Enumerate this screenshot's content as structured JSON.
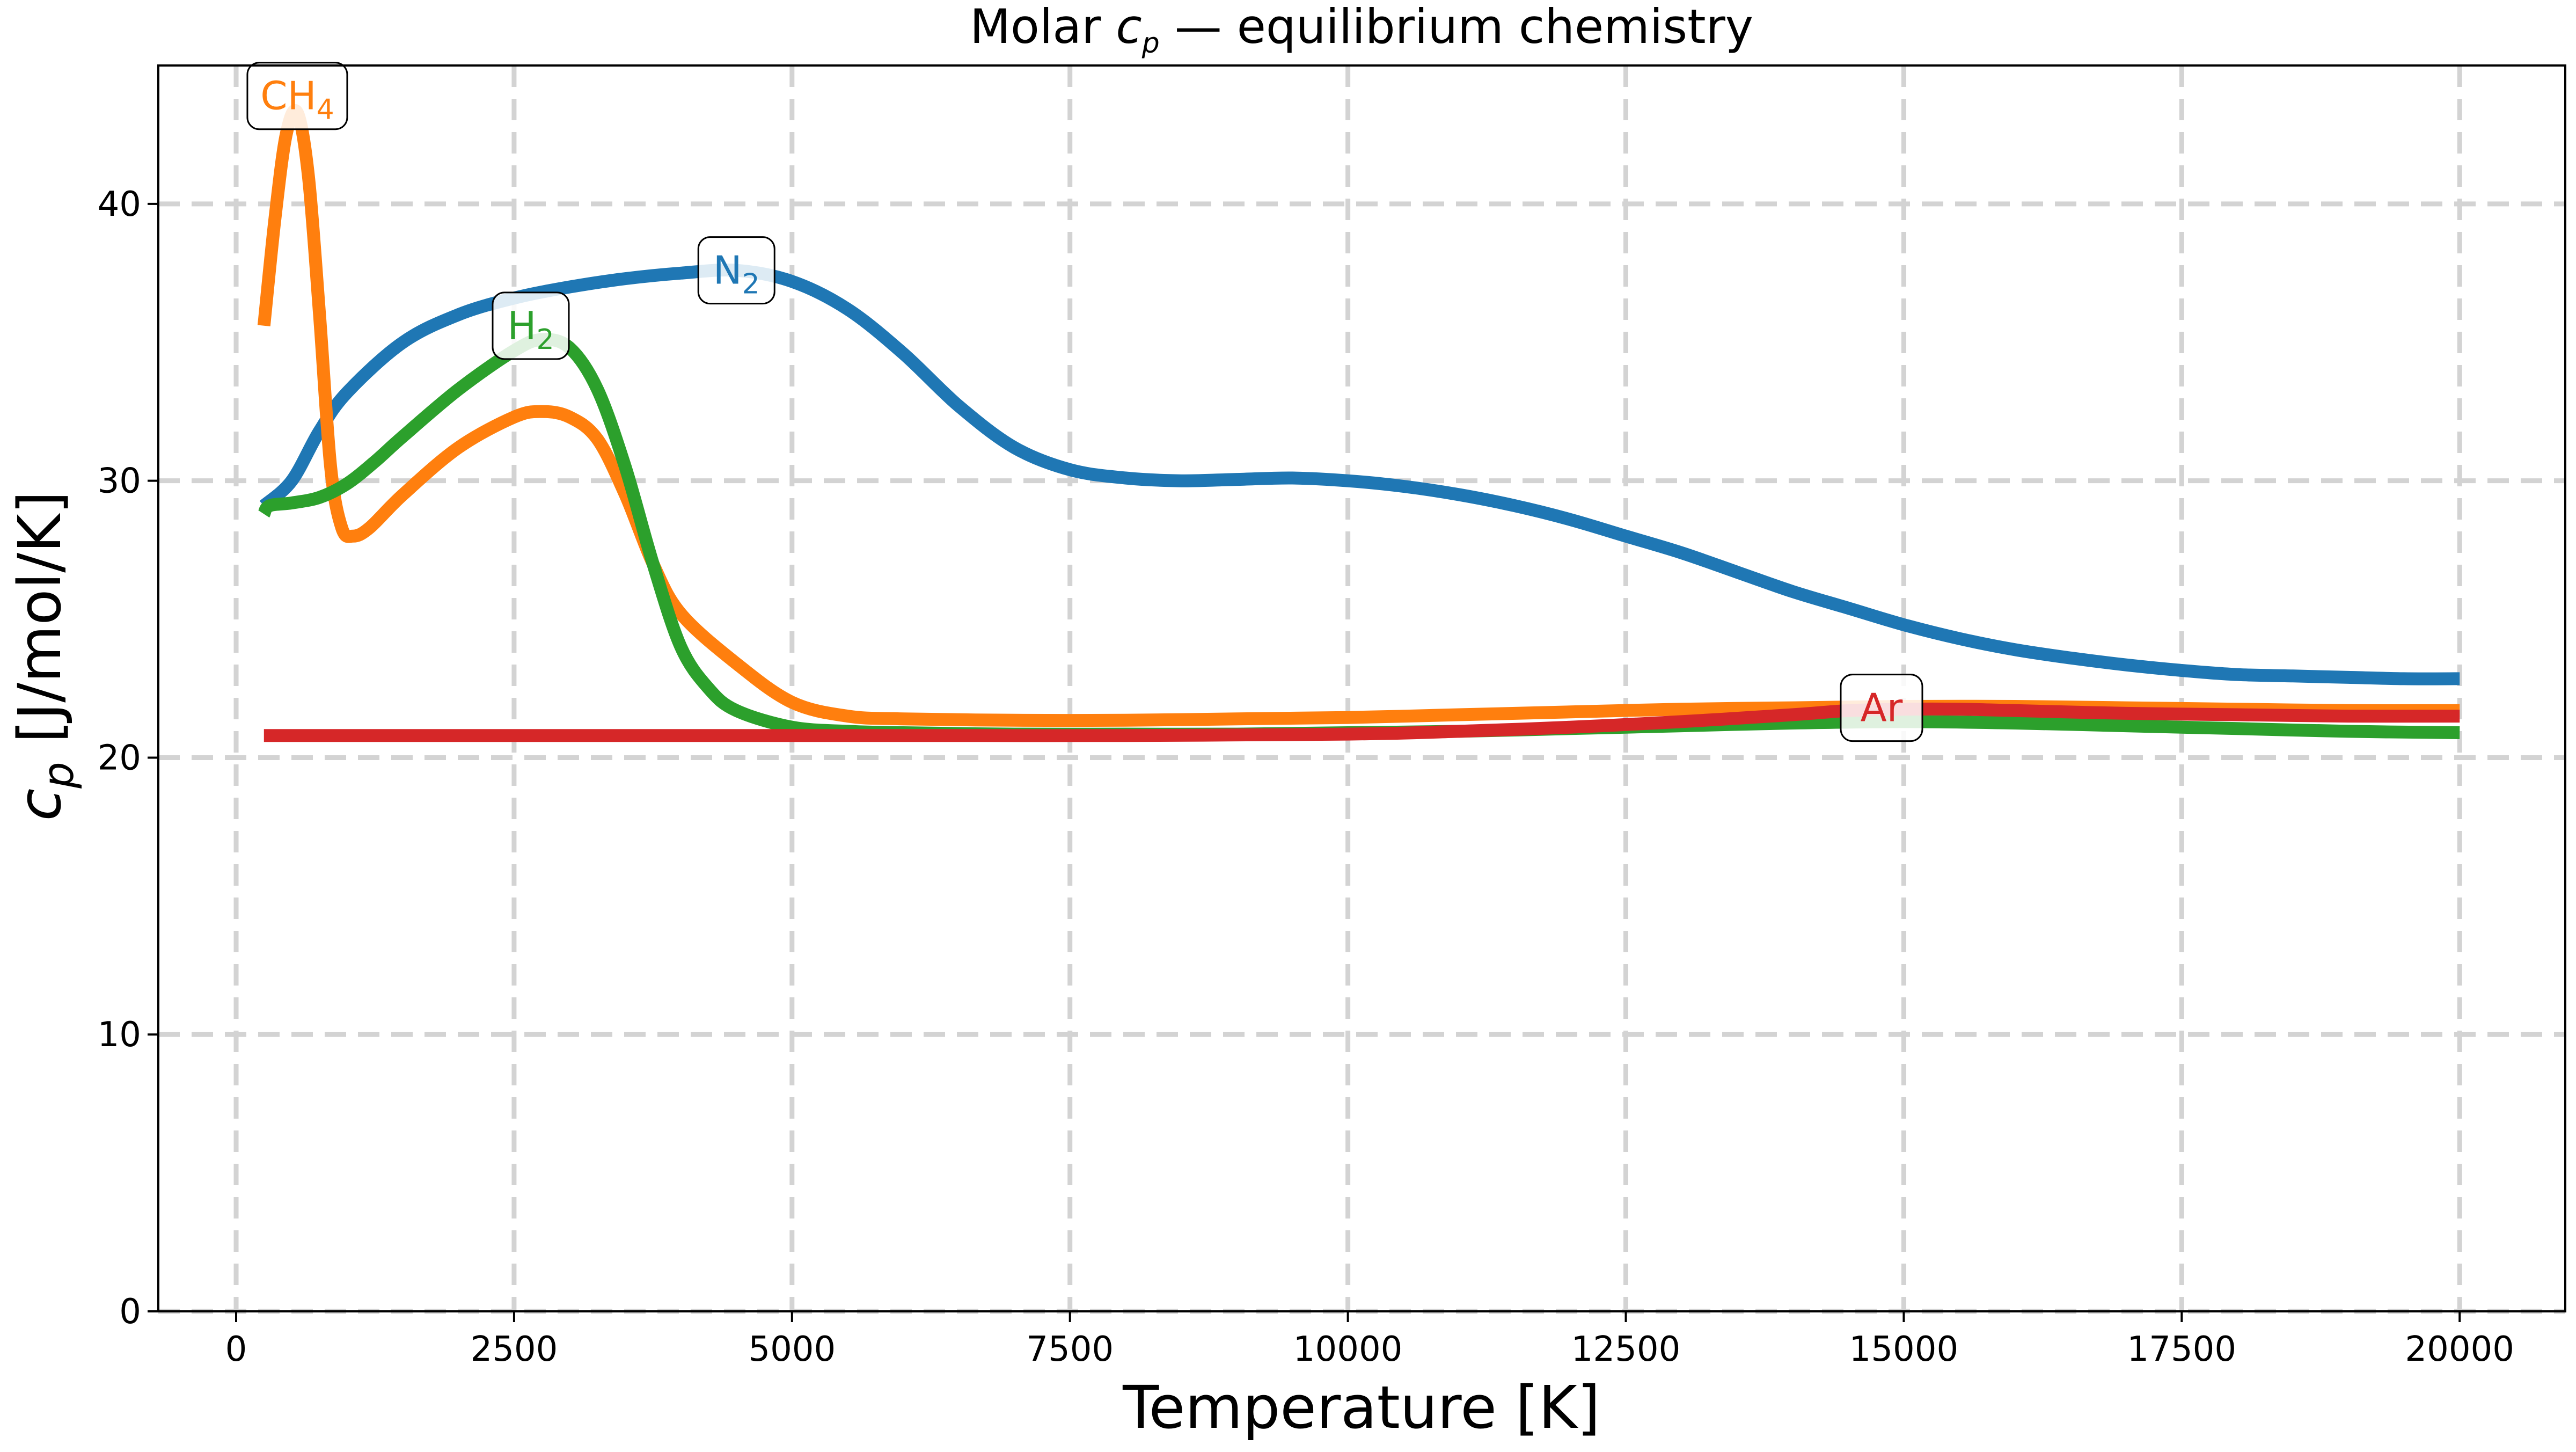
{
  "chart_data": {
    "type": "line",
    "title": {
      "prefix": "Molar ",
      "var": "c",
      "var_sub": "p",
      "suffix": " — equilibrium chemistry"
    },
    "xlabel": "Temperature [K]",
    "ylabel": {
      "var": "c",
      "var_sub": "p",
      "suffix": " [J/mol/K]"
    },
    "xlim": [
      -700,
      20950
    ],
    "ylim": [
      0,
      45
    ],
    "xticks": [
      0,
      2500,
      5000,
      7500,
      10000,
      12500,
      15000,
      17500,
      20000
    ],
    "yticks": [
      0,
      10,
      20,
      30,
      40
    ],
    "grid": true,
    "grid_style": "dashed",
    "legend": "inline labels",
    "series": [
      {
        "name": "N2",
        "label_main": "N",
        "label_sub": "2",
        "color": "#1f77b4",
        "label_at": [
          4500,
          37.6
        ],
        "points": [
          [
            250,
            29.1
          ],
          [
            500,
            30.0
          ],
          [
            750,
            31.8
          ],
          [
            1000,
            33.2
          ],
          [
            1500,
            35.0
          ],
          [
            2000,
            36.0
          ],
          [
            2500,
            36.6
          ],
          [
            3000,
            37.0
          ],
          [
            3500,
            37.3
          ],
          [
            4000,
            37.5
          ],
          [
            4500,
            37.6
          ],
          [
            5000,
            37.2
          ],
          [
            5500,
            36.2
          ],
          [
            6000,
            34.6
          ],
          [
            6500,
            32.7
          ],
          [
            7000,
            31.2
          ],
          [
            7500,
            30.4
          ],
          [
            8000,
            30.1
          ],
          [
            8500,
            30.0
          ],
          [
            9000,
            30.05
          ],
          [
            9500,
            30.1
          ],
          [
            10000,
            30.0
          ],
          [
            10500,
            29.8
          ],
          [
            11000,
            29.5
          ],
          [
            11500,
            29.1
          ],
          [
            12000,
            28.6
          ],
          [
            12500,
            28.0
          ],
          [
            13000,
            27.4
          ],
          [
            13500,
            26.7
          ],
          [
            14000,
            26.0
          ],
          [
            14500,
            25.4
          ],
          [
            15000,
            24.8
          ],
          [
            15500,
            24.3
          ],
          [
            16000,
            23.9
          ],
          [
            16500,
            23.6
          ],
          [
            17000,
            23.35
          ],
          [
            17500,
            23.15
          ],
          [
            18000,
            23.0
          ],
          [
            18500,
            22.95
          ],
          [
            19000,
            22.9
          ],
          [
            19500,
            22.85
          ],
          [
            20000,
            22.85
          ]
        ]
      },
      {
        "name": "CH4",
        "label_main": "CH",
        "label_sub": "4",
        "color": "#ff7f0e",
        "label_at": [
          550,
          43.9
        ],
        "points": [
          [
            250,
            35.6
          ],
          [
            350,
            39.5
          ],
          [
            450,
            42.5
          ],
          [
            550,
            43.3
          ],
          [
            650,
            41.0
          ],
          [
            750,
            36.0
          ],
          [
            850,
            30.5
          ],
          [
            950,
            28.3
          ],
          [
            1050,
            28.0
          ],
          [
            1200,
            28.3
          ],
          [
            1500,
            29.5
          ],
          [
            2000,
            31.2
          ],
          [
            2500,
            32.3
          ],
          [
            2750,
            32.5
          ],
          [
            3000,
            32.3
          ],
          [
            3250,
            31.5
          ],
          [
            3500,
            29.5
          ],
          [
            3750,
            27.0
          ],
          [
            4000,
            25.2
          ],
          [
            4500,
            23.4
          ],
          [
            5000,
            22.0
          ],
          [
            5500,
            21.5
          ],
          [
            6000,
            21.4
          ],
          [
            7000,
            21.35
          ],
          [
            8000,
            21.35
          ],
          [
            9000,
            21.4
          ],
          [
            10000,
            21.45
          ],
          [
            11000,
            21.55
          ],
          [
            12000,
            21.65
          ],
          [
            13000,
            21.75
          ],
          [
            14000,
            21.8
          ],
          [
            15000,
            21.85
          ],
          [
            16000,
            21.85
          ],
          [
            17000,
            21.8
          ],
          [
            18000,
            21.75
          ],
          [
            19000,
            21.7
          ],
          [
            20000,
            21.7
          ]
        ]
      },
      {
        "name": "H2",
        "label_main": "H",
        "label_sub": "2",
        "color": "#2ca02c",
        "label_at": [
          2650,
          35.6
        ],
        "points": [
          [
            250,
            28.8
          ],
          [
            300,
            29.1
          ],
          [
            500,
            29.2
          ],
          [
            750,
            29.4
          ],
          [
            1000,
            29.9
          ],
          [
            1250,
            30.7
          ],
          [
            1500,
            31.6
          ],
          [
            2000,
            33.3
          ],
          [
            2500,
            34.7
          ],
          [
            2750,
            35.1
          ],
          [
            3000,
            34.8
          ],
          [
            3250,
            33.3
          ],
          [
            3500,
            30.5
          ],
          [
            3750,
            27.0
          ],
          [
            4000,
            24.0
          ],
          [
            4250,
            22.5
          ],
          [
            4500,
            21.7
          ],
          [
            5000,
            21.1
          ],
          [
            5500,
            20.95
          ],
          [
            6000,
            20.9
          ],
          [
            7000,
            20.85
          ],
          [
            8000,
            20.85
          ],
          [
            9000,
            20.85
          ],
          [
            10000,
            20.9
          ],
          [
            11000,
            20.95
          ],
          [
            12000,
            21.05
          ],
          [
            13000,
            21.15
          ],
          [
            14000,
            21.25
          ],
          [
            15000,
            21.3
          ],
          [
            16000,
            21.25
          ],
          [
            17000,
            21.15
          ],
          [
            18000,
            21.05
          ],
          [
            19000,
            20.95
          ],
          [
            20000,
            20.9
          ]
        ]
      },
      {
        "name": "Ar",
        "label_main": "Ar",
        "label_sub": "",
        "color": "#d62728",
        "label_at": [
          14800,
          21.8
        ],
        "points": [
          [
            250,
            20.8
          ],
          [
            2000,
            20.8
          ],
          [
            4000,
            20.8
          ],
          [
            6000,
            20.8
          ],
          [
            8000,
            20.8
          ],
          [
            10000,
            20.85
          ],
          [
            11000,
            20.95
          ],
          [
            12000,
            21.1
          ],
          [
            13000,
            21.3
          ],
          [
            14000,
            21.55
          ],
          [
            14500,
            21.7
          ],
          [
            15000,
            21.75
          ],
          [
            15500,
            21.75
          ],
          [
            16000,
            21.7
          ],
          [
            17000,
            21.6
          ],
          [
            18000,
            21.55
          ],
          [
            19000,
            21.5
          ],
          [
            20000,
            21.5
          ]
        ]
      }
    ]
  }
}
